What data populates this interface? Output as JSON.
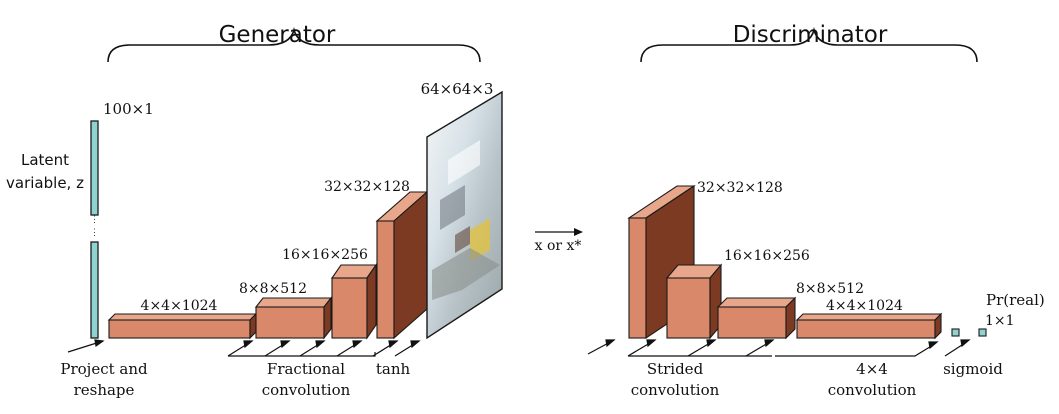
{
  "generator": {
    "title": "Generator",
    "latent_label_line1": "Latent",
    "latent_label_line2": "variable, z",
    "latent_dim": "100×1",
    "layers": [
      "4×4×1024",
      "8×8×512",
      "16×16×256",
      "32×32×128"
    ],
    "output_dim": "64×64×3",
    "op_labels": {
      "project_line1": "Project and",
      "project_line2": "reshape",
      "fractional_line1": "Fractional",
      "fractional_line2": "convolution",
      "tanh": "tanh"
    }
  },
  "connector": {
    "label": "x or x*"
  },
  "discriminator": {
    "title": "Discriminator",
    "layers": [
      "32×32×128",
      "16×16×256",
      "8×8×512",
      "4×4×1024"
    ],
    "prob_label": "Pr(real)",
    "prob_dim": "1×1",
    "op_labels": {
      "strided_line1": "Strided",
      "strided_line2": "convolution",
      "conv4_line1": "4×4",
      "conv4_line2": "convolution",
      "sigmoid": "sigmoid"
    }
  },
  "colors": {
    "block_front": "#d9896a",
    "block_top": "#e8a78b",
    "block_side": "#7d3a22",
    "latent_bar": "#8fd3d0",
    "outline": "#1a1a1a",
    "image_bg": "#c9d6dd"
  }
}
